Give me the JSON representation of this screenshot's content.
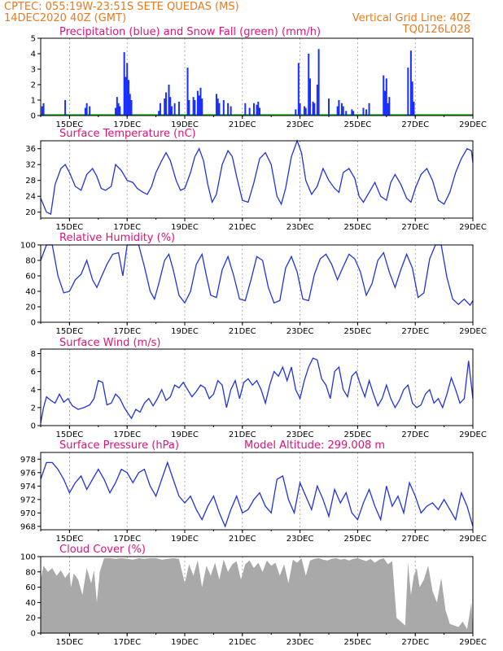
{
  "header": {
    "line1_left": "CPTEC:   055:19W-23:51S   SETE QUEDAS (MS)",
    "line2_left": "14DEC2020 40Z (GMT)",
    "line2_right": "Vertical Grid Line: 40Z",
    "line3_right": "TQ0126L028"
  },
  "x_labels": [
    "15DEC",
    "17DEC",
    "19DEC",
    "21DEC",
    "23DEC",
    "25DEC",
    "27DEC",
    "29DEC"
  ],
  "colors": {
    "precip": "#1a2fff",
    "snow": "#00aa00",
    "line": "#2233dd",
    "cloud": "#a9a9a9",
    "header": "#e87a20",
    "title": "#e0127a"
  },
  "chart_data": [
    {
      "type": "bar",
      "title": "Precipitation (blue) and Snow Fall (green) (mm/h)",
      "ylim": [
        0,
        5
      ],
      "yticks": [
        0,
        1,
        2,
        3,
        4,
        5
      ],
      "xrange": [
        14.0,
        29.0
      ],
      "series": [
        {
          "name": "Precipitation",
          "points": [
            [
              14.05,
              0.6
            ],
            [
              14.1,
              0.8
            ],
            [
              14.85,
              1.0
            ],
            [
              15.55,
              0.5
            ],
            [
              15.6,
              0.8
            ],
            [
              15.7,
              0.6
            ],
            [
              16.6,
              0.5
            ],
            [
              16.65,
              1.2
            ],
            [
              16.7,
              0.8
            ],
            [
              16.75,
              0.6
            ],
            [
              16.9,
              4.1
            ],
            [
              16.95,
              2.5
            ],
            [
              17.0,
              3.4
            ],
            [
              17.05,
              2.3
            ],
            [
              17.1,
              1.4
            ],
            [
              17.15,
              1.0
            ],
            [
              18.1,
              0.3
            ],
            [
              18.15,
              0.8
            ],
            [
              18.3,
              1.1
            ],
            [
              18.35,
              1.5
            ],
            [
              18.45,
              2.0
            ],
            [
              18.5,
              1.2
            ],
            [
              18.55,
              0.6
            ],
            [
              18.65,
              0.8
            ],
            [
              18.8,
              0.9
            ],
            [
              19.1,
              3.1
            ],
            [
              19.15,
              1.0
            ],
            [
              19.3,
              1.2
            ],
            [
              19.35,
              1.0
            ],
            [
              19.45,
              1.6
            ],
            [
              19.5,
              1.3
            ],
            [
              19.55,
              1.8
            ],
            [
              19.6,
              1.1
            ],
            [
              20.1,
              1.4
            ],
            [
              20.15,
              1.1
            ],
            [
              20.2,
              0.8
            ],
            [
              20.35,
              1.0
            ],
            [
              20.5,
              0.8
            ],
            [
              20.6,
              0.6
            ],
            [
              21.1,
              0.8
            ],
            [
              21.25,
              0.5
            ],
            [
              21.4,
              0.8
            ],
            [
              21.5,
              0.7
            ],
            [
              21.55,
              0.9
            ],
            [
              21.6,
              0.5
            ],
            [
              22.85,
              0.4
            ],
            [
              22.95,
              3.4
            ],
            [
              23.0,
              0.8
            ],
            [
              23.15,
              0.6
            ],
            [
              23.2,
              0.5
            ],
            [
              23.3,
              4.0
            ],
            [
              23.35,
              2.4
            ],
            [
              23.45,
              0.9
            ],
            [
              23.5,
              0.8
            ],
            [
              23.6,
              2.0
            ],
            [
              23.65,
              4.3
            ],
            [
              24.0,
              1.1
            ],
            [
              24.3,
              0.6
            ],
            [
              24.35,
              1.0
            ],
            [
              24.45,
              0.8
            ],
            [
              24.5,
              0.6
            ],
            [
              24.6,
              0.3
            ],
            [
              24.8,
              0.4
            ],
            [
              24.85,
              0.3
            ],
            [
              25.2,
              0.5
            ],
            [
              25.3,
              0.4
            ],
            [
              25.4,
              0.8
            ],
            [
              25.9,
              2.6
            ],
            [
              25.95,
              1.6
            ],
            [
              26.0,
              2.4
            ],
            [
              26.05,
              0.8
            ],
            [
              26.1,
              1.2
            ],
            [
              26.75,
              3.1
            ],
            [
              26.85,
              4.2
            ],
            [
              26.9,
              2.2
            ],
            [
              26.95,
              0.9
            ]
          ]
        },
        {
          "name": "Snow Fall",
          "points": []
        }
      ]
    },
    {
      "type": "line",
      "title": "Surface Temperature (nC)",
      "ylim": [
        18.5,
        38
      ],
      "yticks": [
        20,
        24,
        28,
        32,
        36
      ],
      "xrange": [
        14.0,
        29.0
      ],
      "x": [
        14.0,
        14.2,
        14.35,
        14.5,
        14.7,
        14.85,
        15.0,
        15.2,
        15.4,
        15.6,
        15.8,
        15.95,
        16.1,
        16.25,
        16.45,
        16.6,
        16.8,
        17.0,
        17.2,
        17.35,
        17.55,
        17.7,
        17.85,
        18.0,
        18.2,
        18.35,
        18.5,
        18.7,
        18.85,
        19.0,
        19.2,
        19.35,
        19.5,
        19.65,
        19.8,
        19.95,
        20.1,
        20.3,
        20.5,
        20.65,
        20.8,
        21.0,
        21.2,
        21.4,
        21.6,
        21.8,
        22.0,
        22.2,
        22.35,
        22.5,
        22.7,
        22.9,
        23.05,
        23.2,
        23.4,
        23.6,
        23.8,
        24.0,
        24.2,
        24.35,
        24.5,
        24.7,
        24.9,
        25.05,
        25.2,
        25.4,
        25.6,
        25.8,
        26.0,
        26.15,
        26.3,
        26.5,
        26.7,
        26.85,
        27.0,
        27.2,
        27.4,
        27.6,
        27.8,
        28.0,
        28.2,
        28.4,
        28.6,
        28.8,
        28.95,
        29.0
      ],
      "y": [
        23.5,
        20,
        19.5,
        27,
        31,
        32,
        30,
        26.5,
        25.5,
        29.5,
        31,
        29,
        26,
        25.5,
        26.5,
        32,
        30.5,
        28,
        27.5,
        26,
        25,
        24.5,
        26.5,
        30,
        33,
        35,
        33,
        28,
        25.5,
        26,
        30,
        34,
        36,
        33,
        27,
        22.5,
        24.5,
        32,
        35.5,
        34,
        29,
        23,
        22.5,
        27.5,
        33.5,
        35,
        32,
        24,
        22,
        26,
        34,
        38,
        35,
        28,
        24.5,
        26.5,
        31,
        28,
        26,
        25,
        30,
        31,
        28.5,
        24,
        22.5,
        25,
        27.5,
        24,
        23,
        27.5,
        29.5,
        27,
        23.5,
        22.5,
        26,
        29.5,
        31,
        28,
        23,
        22,
        25,
        30,
        33.5,
        36,
        35.5,
        32.5
      ]
    },
    {
      "type": "line",
      "title": "Relative Humidity (%)",
      "ylim": [
        0,
        100
      ],
      "yticks": [
        0,
        20,
        40,
        60,
        80,
        100
      ],
      "xrange": [
        14.0,
        29.0
      ],
      "x": [
        14.0,
        14.2,
        14.4,
        14.6,
        14.8,
        15.0,
        15.2,
        15.4,
        15.6,
        15.8,
        15.95,
        16.1,
        16.3,
        16.5,
        16.7,
        16.85,
        17.0,
        17.2,
        17.4,
        17.6,
        17.8,
        17.95,
        18.1,
        18.3,
        18.45,
        18.6,
        18.8,
        19.0,
        19.2,
        19.4,
        19.6,
        19.75,
        19.9,
        20.1,
        20.3,
        20.5,
        20.7,
        20.9,
        21.1,
        21.3,
        21.5,
        21.7,
        21.9,
        22.1,
        22.3,
        22.5,
        22.7,
        22.9,
        23.1,
        23.3,
        23.5,
        23.7,
        23.9,
        24.1,
        24.3,
        24.5,
        24.7,
        24.9,
        25.1,
        25.3,
        25.5,
        25.7,
        25.9,
        26.1,
        26.3,
        26.5,
        26.7,
        26.9,
        27.1,
        27.3,
        27.5,
        27.7,
        27.9,
        28.1,
        28.3,
        28.5,
        28.7,
        28.9,
        29.0
      ],
      "y": [
        80,
        100,
        100,
        60,
        38,
        40,
        55,
        62,
        80,
        55,
        45,
        58,
        75,
        88,
        90,
        60,
        100,
        100,
        100,
        72,
        40,
        30,
        50,
        80,
        88,
        68,
        35,
        25,
        40,
        75,
        88,
        60,
        35,
        32,
        68,
        85,
        60,
        30,
        28,
        55,
        85,
        80,
        45,
        25,
        28,
        70,
        85,
        65,
        30,
        28,
        62,
        82,
        88,
        75,
        55,
        72,
        88,
        82,
        65,
        35,
        50,
        80,
        90,
        65,
        45,
        68,
        88,
        70,
        32,
        38,
        82,
        100,
        100,
        58,
        30,
        23,
        30,
        22,
        28
      ]
    },
    {
      "type": "line",
      "title": "Surface Wind (m/s)",
      "ylim": [
        0,
        8.5
      ],
      "yticks": [
        0,
        2,
        4,
        6,
        8
      ],
      "xrange": [
        14.0,
        29.0
      ],
      "x": [
        14.0,
        14.1,
        14.2,
        14.35,
        14.5,
        14.65,
        14.8,
        14.95,
        15.1,
        15.3,
        15.5,
        15.7,
        15.85,
        16.0,
        16.15,
        16.3,
        16.45,
        16.6,
        16.75,
        16.9,
        17.0,
        17.15,
        17.3,
        17.45,
        17.6,
        17.75,
        17.9,
        18.05,
        18.2,
        18.35,
        18.5,
        18.65,
        18.8,
        18.95,
        19.1,
        19.25,
        19.4,
        19.55,
        19.7,
        19.85,
        20.0,
        20.15,
        20.3,
        20.45,
        20.6,
        20.75,
        20.9,
        21.05,
        21.2,
        21.35,
        21.5,
        21.65,
        21.8,
        21.95,
        22.1,
        22.25,
        22.4,
        22.55,
        22.7,
        22.85,
        23.0,
        23.15,
        23.3,
        23.45,
        23.6,
        23.75,
        23.9,
        24.05,
        24.2,
        24.35,
        24.5,
        24.65,
        24.8,
        24.95,
        25.1,
        25.25,
        25.4,
        25.55,
        25.7,
        25.85,
        26.0,
        26.15,
        26.3,
        26.45,
        26.6,
        26.75,
        26.9,
        27.05,
        27.2,
        27.35,
        27.5,
        27.65,
        27.8,
        27.95,
        28.1,
        28.25,
        28.4,
        28.55,
        28.7,
        28.85,
        29.0
      ],
      "y": [
        0.3,
        2.0,
        3.2,
        2.8,
        2.5,
        3.5,
        2.6,
        3.0,
        2.2,
        1.8,
        2.0,
        2.3,
        3.0,
        5.0,
        4.8,
        2.3,
        2.5,
        3.5,
        3.0,
        2.0,
        1.5,
        0.8,
        1.8,
        1.5,
        2.5,
        3.0,
        2.2,
        3.0,
        4.0,
        2.8,
        3.2,
        4.5,
        4.2,
        4.8,
        4.0,
        3.2,
        3.8,
        4.5,
        4.2,
        3.0,
        3.5,
        5.0,
        4.5,
        2.0,
        4.0,
        5.0,
        3.0,
        4.8,
        5.2,
        4.5,
        5.0,
        4.0,
        2.5,
        4.5,
        6.0,
        5.5,
        6.5,
        5.0,
        6.5,
        4.0,
        3.0,
        5.0,
        6.5,
        7.5,
        7.3,
        5.2,
        4.5,
        3.0,
        6.0,
        6.5,
        4.0,
        3.2,
        5.5,
        6.0,
        4.5,
        3.2,
        5.0,
        3.5,
        2.2,
        3.0,
        4.5,
        3.0,
        2.0,
        2.8,
        4.0,
        4.5,
        2.5,
        2.0,
        2.3,
        3.5,
        4.0,
        2.5,
        3.0,
        2.0,
        3.5,
        5.3,
        4.0,
        2.5,
        3.0,
        7.2,
        3.0
      ]
    },
    {
      "type": "line",
      "title": "Surface Pressure (hPa)",
      "annotation": "Model Altitude: 299.008 m",
      "ylim": [
        967.5,
        979
      ],
      "yticks": [
        968,
        970,
        972,
        974,
        976,
        978
      ],
      "xrange": [
        14.0,
        29.0
      ],
      "x": [
        14.0,
        14.2,
        14.4,
        14.6,
        14.8,
        15.0,
        15.2,
        15.4,
        15.6,
        15.8,
        16.0,
        16.2,
        16.4,
        16.6,
        16.8,
        17.0,
        17.2,
        17.4,
        17.6,
        17.8,
        18.0,
        18.2,
        18.4,
        18.6,
        18.8,
        19.0,
        19.2,
        19.4,
        19.6,
        19.8,
        20.0,
        20.2,
        20.4,
        20.6,
        20.8,
        21.0,
        21.2,
        21.4,
        21.6,
        21.8,
        22.0,
        22.2,
        22.4,
        22.6,
        22.8,
        23.0,
        23.2,
        23.4,
        23.6,
        23.8,
        24.0,
        24.2,
        24.4,
        24.6,
        24.8,
        25.0,
        25.2,
        25.4,
        25.6,
        25.8,
        26.0,
        26.2,
        26.4,
        26.6,
        26.8,
        27.0,
        27.2,
        27.4,
        27.6,
        27.8,
        28.0,
        28.2,
        28.4,
        28.6,
        28.8,
        29.0
      ],
      "y": [
        975,
        977.5,
        977.5,
        976.5,
        975,
        973,
        974.5,
        975.5,
        973.5,
        975,
        976.5,
        975,
        973,
        974.5,
        976.5,
        976,
        974.5,
        976,
        976.5,
        974,
        972.5,
        975,
        977.5,
        975,
        972.5,
        971.5,
        972.5,
        970.5,
        969,
        971,
        972.5,
        970,
        968,
        970.5,
        972.5,
        970,
        970.5,
        972,
        973,
        971,
        970,
        975,
        975.5,
        972,
        970,
        974.5,
        972.5,
        970.5,
        974,
        972,
        969.5,
        973.5,
        971.5,
        973,
        970,
        969,
        971.5,
        973.5,
        971,
        969,
        974,
        971,
        972.5,
        970,
        974.5,
        972.5,
        970,
        971,
        971.5,
        970.5,
        972,
        970.5,
        969,
        973,
        971,
        968
      ]
    },
    {
      "type": "area",
      "title": "Cloud Cover (%)",
      "ylim": [
        0,
        100
      ],
      "yticks": [
        0,
        20,
        40,
        60,
        80,
        100
      ],
      "xrange": [
        14.0,
        29.0
      ],
      "x": [
        14.0,
        14.1,
        14.25,
        14.4,
        14.55,
        14.7,
        14.85,
        15.0,
        15.05,
        15.15,
        15.3,
        15.45,
        15.6,
        15.75,
        15.85,
        15.95,
        16.05,
        16.2,
        16.4,
        16.6,
        16.8,
        17.0,
        17.2,
        17.4,
        17.6,
        17.8,
        18.0,
        18.2,
        18.4,
        18.6,
        18.8,
        19.0,
        19.15,
        19.3,
        19.45,
        19.6,
        19.75,
        19.9,
        20.05,
        20.2,
        20.35,
        20.5,
        20.65,
        20.8,
        20.95,
        21.1,
        21.25,
        21.4,
        21.55,
        21.7,
        21.85,
        22.0,
        22.15,
        22.3,
        22.45,
        22.6,
        22.75,
        22.9,
        23.05,
        23.2,
        23.35,
        23.5,
        23.65,
        23.8,
        23.95,
        24.1,
        24.25,
        24.4,
        24.55,
        24.7,
        24.85,
        25.0,
        25.15,
        25.3,
        25.45,
        25.6,
        25.75,
        25.9,
        26.05,
        26.2,
        26.35,
        26.5,
        26.65,
        26.75,
        26.85,
        26.95,
        27.05,
        27.15,
        27.3,
        27.45,
        27.6,
        27.75,
        27.9,
        28.05,
        28.2,
        28.35,
        28.5,
        28.65,
        28.8,
        28.95,
        29.0
      ],
      "y": [
        70,
        88,
        80,
        85,
        75,
        82,
        72,
        80,
        60,
        78,
        70,
        50,
        85,
        65,
        82,
        40,
        80,
        98,
        98,
        97,
        98,
        97,
        96,
        98,
        97,
        98,
        98,
        96,
        97,
        98,
        97,
        65,
        90,
        75,
        95,
        60,
        88,
        75,
        92,
        70,
        96,
        80,
        90,
        94,
        70,
        90,
        95,
        85,
        92,
        80,
        95,
        88,
        92,
        75,
        90,
        65,
        96,
        92,
        98,
        75,
        95,
        97,
        98,
        96,
        95,
        97,
        98,
        96,
        97,
        95,
        97,
        98,
        96,
        94,
        97,
        92,
        96,
        98,
        90,
        94,
        20,
        15,
        10,
        92,
        50,
        75,
        85,
        60,
        70,
        88,
        55,
        40,
        72,
        30,
        12,
        10,
        8,
        15,
        5,
        40,
        2
      ]
    }
  ]
}
